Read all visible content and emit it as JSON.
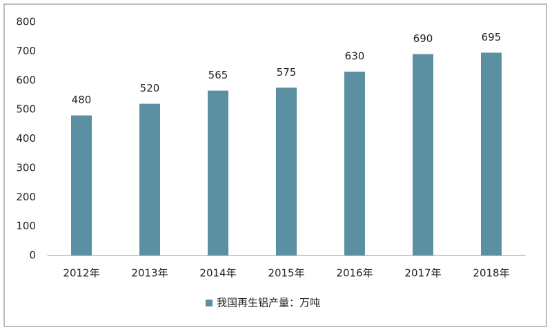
{
  "chart_data": {
    "type": "bar",
    "categories": [
      "2012年",
      "2013年",
      "2014年",
      "2015年",
      "2016年",
      "2017年",
      "2018年"
    ],
    "series": [
      {
        "name": "我国再生铝产量：万吨",
        "color": "#5b8fa2",
        "values": [
          480,
          520,
          565,
          575,
          630,
          690,
          695
        ]
      }
    ],
    "ylim": [
      0,
      800
    ],
    "yticks": [
      0,
      100,
      200,
      300,
      400,
      500,
      600,
      700,
      800
    ],
    "grid": false,
    "legend": "bottom"
  }
}
